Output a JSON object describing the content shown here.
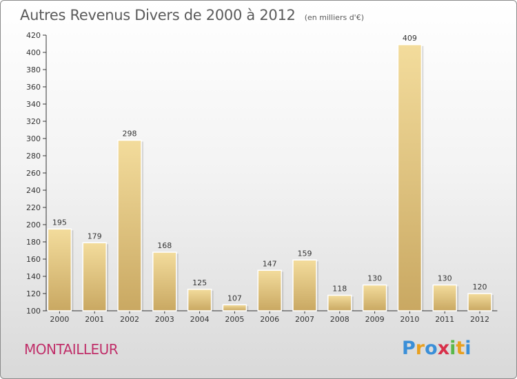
{
  "header": {
    "title": "Autres Revenus Divers de 2000 à 2012",
    "unit": "(en milliers d'€)"
  },
  "footer": {
    "commune": "MONTAILLEUR",
    "logo_letters": [
      "P",
      "r",
      "o",
      "x",
      "i",
      "t",
      "i"
    ],
    "logo_colors": [
      "#3a8fd8",
      "#e8a020",
      "#3a8fd8",
      "#d8304a",
      "#5ab84a",
      "#e8a020",
      "#3a8fd8"
    ]
  },
  "colors": {
    "bar_light": "#f3dc9c",
    "bar_dark": "#c9a862",
    "commune": "#c0306a",
    "axis": "#333333"
  },
  "chart_data": {
    "type": "bar",
    "title": "Autres Revenus Divers de 2000 à 2012",
    "xlabel": "",
    "ylabel": "",
    "categories": [
      "2000",
      "2001",
      "2002",
      "2003",
      "2004",
      "2005",
      "2006",
      "2007",
      "2008",
      "2009",
      "2010",
      "2011",
      "2012"
    ],
    "values": [
      195,
      179,
      298,
      168,
      125,
      107,
      147,
      159,
      118,
      130,
      409,
      130,
      120
    ],
    "ylim": [
      100,
      420
    ],
    "yticks": [
      100,
      120,
      140,
      160,
      180,
      200,
      220,
      240,
      260,
      280,
      300,
      320,
      340,
      360,
      380,
      400,
      420
    ],
    "grid": false,
    "legend": "none"
  }
}
